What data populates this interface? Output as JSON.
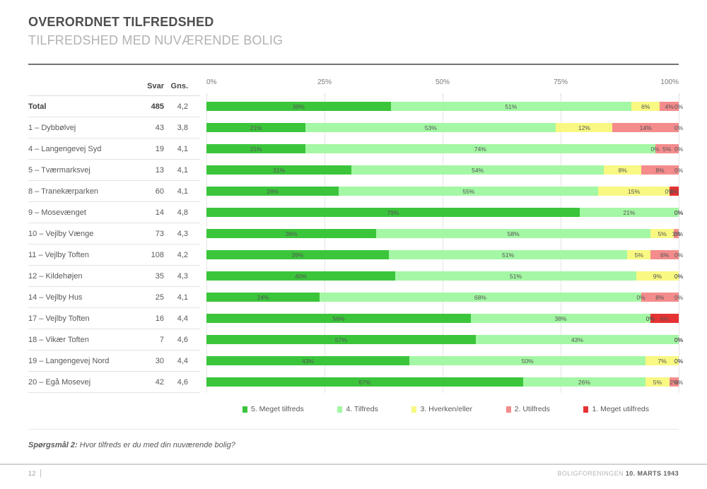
{
  "header": {
    "title": "OVERORDNET TILFREDSHED",
    "subtitle": "TILFREDSHED MED NUVÆRENDE BOLIG"
  },
  "table": {
    "col_svar": "Svar",
    "col_gns": "Gns."
  },
  "chart_data": {
    "type": "bar",
    "stacked": true,
    "orientation": "horizontal",
    "title": "OVERORDNET TILFREDSHED — TILFREDSHED MED NUVÆRENDE BOLIG",
    "xlim": [
      0,
      100
    ],
    "axis_ticks": [
      "0%",
      "25%",
      "50%",
      "75%",
      "100%"
    ],
    "grid": true,
    "legend_position": "bottom",
    "series": [
      {
        "name": "5. Meget tilfreds",
        "color": "#3bc53b"
      },
      {
        "name": "4. Tilfreds",
        "color": "#a4f7a4"
      },
      {
        "name": "3. Hverken/eller",
        "color": "#f8f883"
      },
      {
        "name": "2. Utilfreds",
        "color": "#f48c8c"
      },
      {
        "name": "1. Meget utilfreds",
        "color": "#e53232"
      }
    ],
    "rows": [
      {
        "label": "Total",
        "svar": "485",
        "gns": "4,2",
        "values": [
          39,
          51,
          6,
          4,
          0
        ],
        "bold": true
      },
      {
        "label": "1 – Dybbølvej",
        "svar": "43",
        "gns": "3,8",
        "values": [
          21,
          53,
          12,
          14,
          0
        ],
        "bold": false
      },
      {
        "label": "4 – Langengevej Syd",
        "svar": "19",
        "gns": "4,1",
        "values": [
          21,
          74,
          0,
          5,
          0
        ],
        "bold": false
      },
      {
        "label": "5 – Tværmarksvej",
        "svar": "13",
        "gns": "4,1",
        "values": [
          31,
          54,
          8,
          8,
          0
        ],
        "bold": false
      },
      {
        "label": "8 – Tranekærparken",
        "svar": "60",
        "gns": "4,1",
        "values": [
          28,
          55,
          15,
          0,
          2
        ],
        "bold": false
      },
      {
        "label": "9 – Mosevænget",
        "svar": "14",
        "gns": "4,8",
        "values": [
          79,
          21,
          0,
          0,
          0
        ],
        "bold": false
      },
      {
        "label": "10 – Vejlby Vænge",
        "svar": "73",
        "gns": "4,3",
        "values": [
          36,
          58,
          5,
          1,
          0
        ],
        "bold": false
      },
      {
        "label": "11 – Vejlby Toften",
        "svar": "108",
        "gns": "4,2",
        "values": [
          39,
          51,
          5,
          6,
          0
        ],
        "bold": false
      },
      {
        "label": "12 – Kildehøjen",
        "svar": "35",
        "gns": "4,3",
        "values": [
          40,
          51,
          9,
          0,
          0
        ],
        "bold": false
      },
      {
        "label": "14 – Vejlby Hus",
        "svar": "25",
        "gns": "4,1",
        "values": [
          24,
          68,
          0,
          8,
          0
        ],
        "bold": false
      },
      {
        "label": "17 – Vejlby Toften",
        "svar": "16",
        "gns": "4,4",
        "values": [
          56,
          38,
          0,
          0,
          6
        ],
        "bold": false
      },
      {
        "label": "18 – Vikær Toften",
        "svar": "7",
        "gns": "4,6",
        "values": [
          57,
          43,
          0,
          0,
          0
        ],
        "bold": false
      },
      {
        "label": "19 – Langengevej Nord",
        "svar": "30",
        "gns": "4,4",
        "values": [
          43,
          50,
          7,
          0,
          0
        ],
        "bold": false
      },
      {
        "label": "20 – Egå Mosevej",
        "svar": "42",
        "gns": "4,6",
        "values": [
          67,
          26,
          5,
          2,
          0
        ],
        "bold": false
      }
    ]
  },
  "footer": {
    "question_label": "Spørgsmål 2:",
    "question_text": " Hvor tilfreds er du med din nuværende bolig?",
    "page": "12",
    "org": "BOLIGFORENINGEN",
    "date": "10. MARTS 1943"
  }
}
